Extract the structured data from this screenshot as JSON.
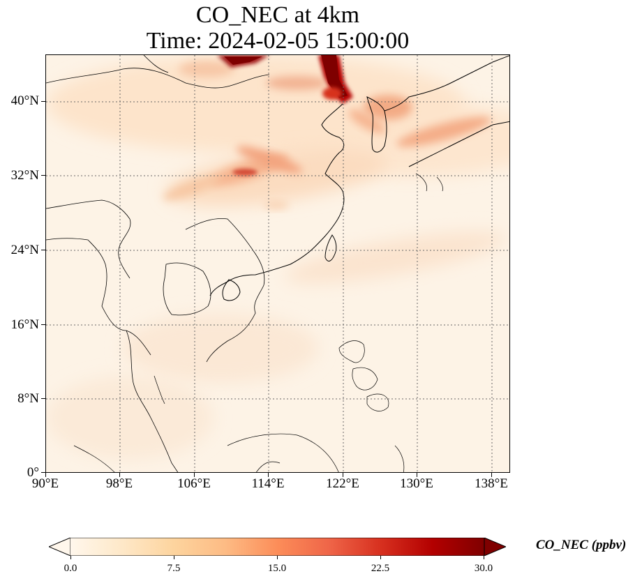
{
  "title": {
    "line1": "CO_NEC at 4km",
    "line2": "Time: 2024-02-05 15:00:00"
  },
  "map": {
    "lon_ticks": [
      "90°E",
      "98°E",
      "106°E",
      "114°E",
      "122°E",
      "130°E",
      "138°E"
    ],
    "lat_ticks": [
      "40°N",
      "32°N",
      "24°N",
      "16°N",
      "8°N",
      "0°"
    ],
    "lon_range": [
      90,
      140
    ],
    "lat_range": [
      0,
      45
    ],
    "gridlines": true,
    "gridline_style": "dotted"
  },
  "colorbar": {
    "label": "CO_NEC (ppbv)",
    "ticks": [
      "0.0",
      "7.5",
      "15.0",
      "22.5",
      "30.0"
    ],
    "range": [
      0,
      30
    ],
    "colormap": "OrRd",
    "extend": "both",
    "colors": [
      "#fff7ec",
      "#fee8c8",
      "#fdd49e",
      "#fdbb84",
      "#fc8d59",
      "#ef6548",
      "#d7301f",
      "#b30000",
      "#7f0000"
    ]
  }
}
